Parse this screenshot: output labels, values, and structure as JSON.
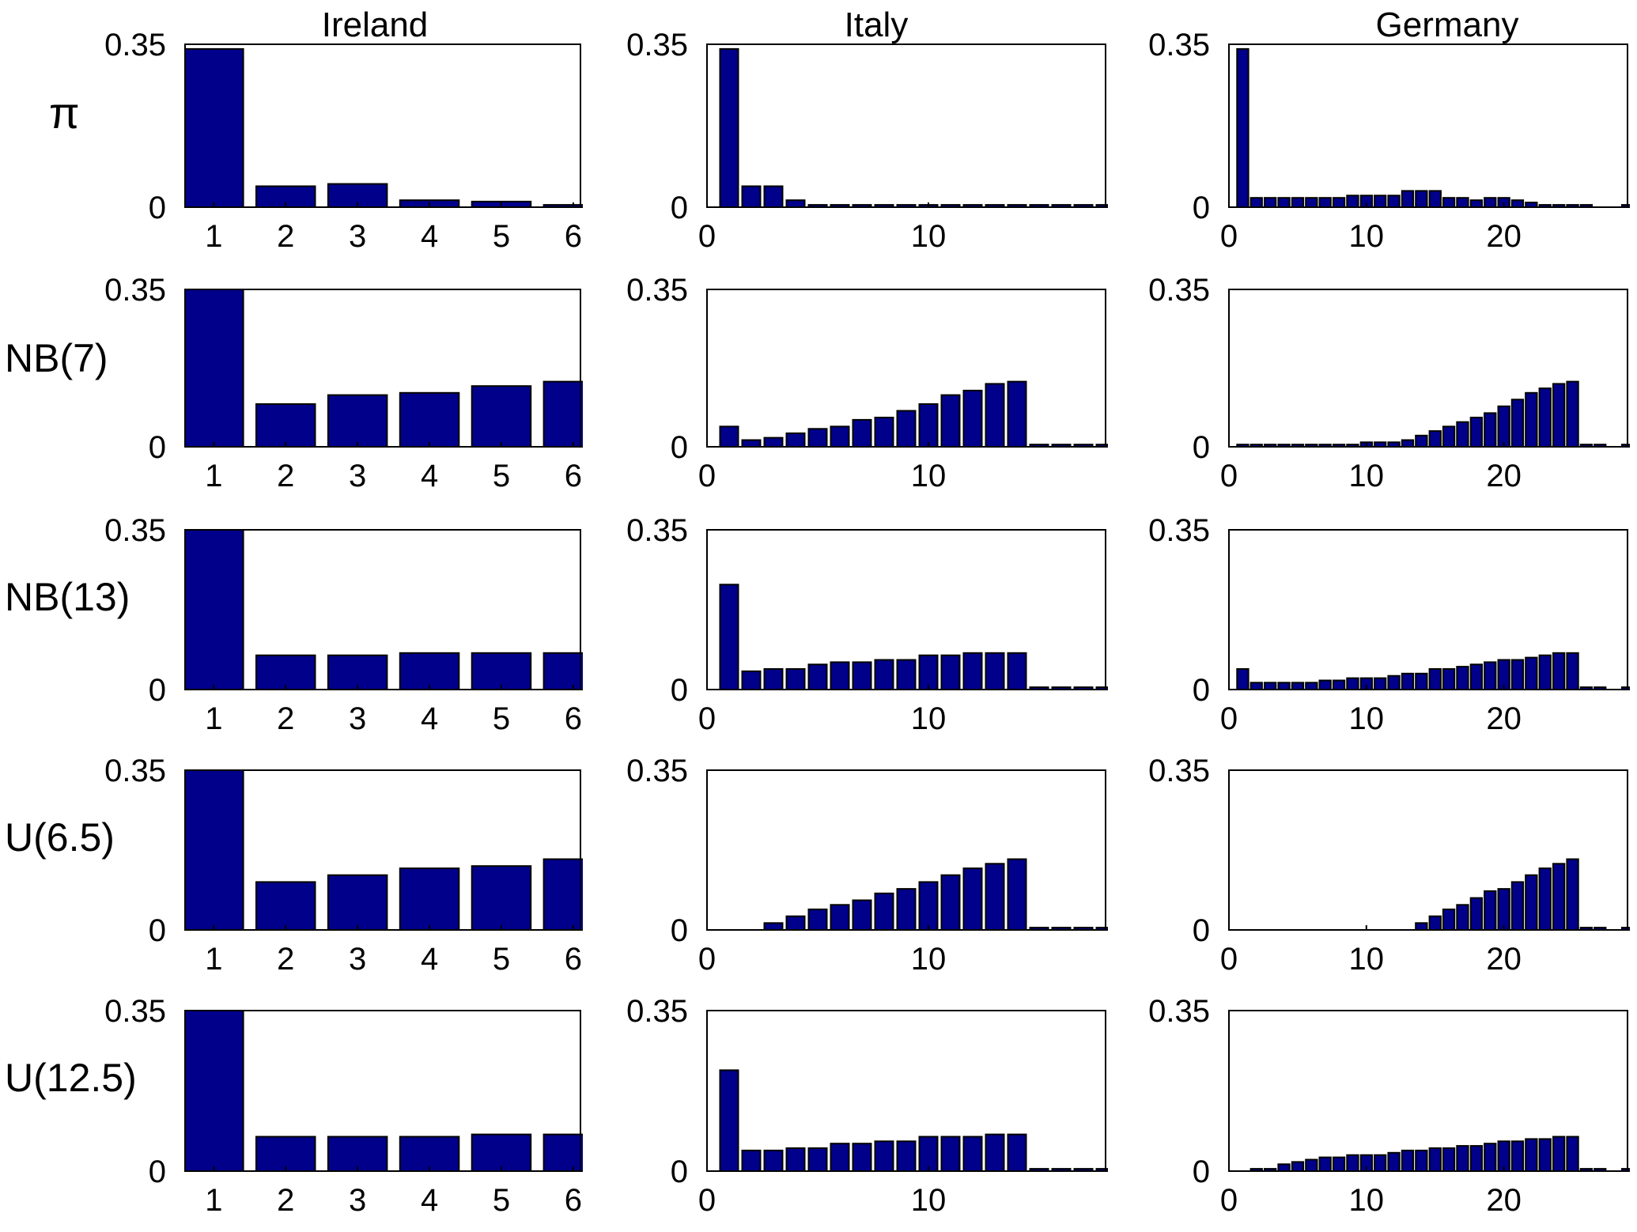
{
  "chart_data": {
    "type": "bar",
    "layout": "grid of bar charts, 5 rows x 3 columns",
    "columns": [
      "Ireland",
      "Italy",
      "Germany"
    ],
    "rows": [
      "π",
      "NB(7)",
      "NB(13)",
      "U(6.5)",
      "U(12.5)"
    ],
    "ylim": [
      0,
      0.35
    ],
    "y_ticks": [
      "0",
      "0.35"
    ],
    "bar_color": "#00008b",
    "bar_edge_color": "#000000",
    "grid": false,
    "axes": {
      "Ireland": {
        "xlim": [
          0.6,
          6.1
        ],
        "x_ticks": [
          1,
          2,
          3,
          4,
          5,
          6
        ],
        "x": [
          1,
          2,
          3,
          4,
          5,
          6
        ]
      },
      "Italy": {
        "xlim": [
          0,
          18
        ],
        "x_ticks": [
          0,
          10
        ],
        "x": [
          1,
          2,
          3,
          4,
          5,
          6,
          7,
          8,
          9,
          10,
          11,
          12,
          13,
          14,
          15,
          16,
          17,
          18
        ]
      },
      "Germany": {
        "xlim": [
          0,
          29
        ],
        "x_ticks": [
          0,
          10,
          20
        ],
        "x": [
          1,
          2,
          3,
          4,
          5,
          6,
          7,
          8,
          9,
          10,
          11,
          12,
          13,
          14,
          15,
          16,
          17,
          18,
          19,
          20,
          21,
          22,
          23,
          24,
          25,
          26,
          27,
          28,
          29
        ]
      }
    },
    "panels": {
      "π": {
        "Ireland": [
          0.34,
          0.045,
          0.05,
          0.015,
          0.012,
          0.005
        ],
        "Italy": [
          0.34,
          0.045,
          0.045,
          0.015,
          0.005,
          0.005,
          0.005,
          0.005,
          0.005,
          0.005,
          0.005,
          0.005,
          0.005,
          0.005,
          0.005,
          0.005,
          0.005,
          0.005
        ],
        "Germany": [
          0.34,
          0.02,
          0.02,
          0.02,
          0.02,
          0.02,
          0.02,
          0.02,
          0.025,
          0.025,
          0.025,
          0.025,
          0.035,
          0.035,
          0.035,
          0.02,
          0.02,
          0.015,
          0.02,
          0.02,
          0.015,
          0.01,
          0.005,
          0.005,
          0.005,
          0.005,
          0.0,
          0.0,
          0.005
        ]
      },
      "NB(7)": {
        "Ireland": [
          0.35,
          0.095,
          0.115,
          0.12,
          0.135,
          0.145
        ],
        "Italy": [
          0.045,
          0.015,
          0.02,
          0.03,
          0.04,
          0.045,
          0.06,
          0.065,
          0.08,
          0.095,
          0.115,
          0.125,
          0.14,
          0.145,
          0.005,
          0.005,
          0.005,
          0.005
        ],
        "Germany": [
          0.005,
          0.005,
          0.005,
          0.005,
          0.005,
          0.005,
          0.005,
          0.005,
          0.005,
          0.01,
          0.01,
          0.01,
          0.015,
          0.025,
          0.035,
          0.045,
          0.055,
          0.065,
          0.075,
          0.09,
          0.105,
          0.12,
          0.13,
          0.14,
          0.145,
          0.005,
          0.005,
          0.0,
          0.005
        ]
      },
      "NB(13)": {
        "Ireland": [
          0.35,
          0.075,
          0.075,
          0.08,
          0.08,
          0.08
        ],
        "Italy": [
          0.23,
          0.04,
          0.045,
          0.045,
          0.055,
          0.06,
          0.06,
          0.065,
          0.065,
          0.075,
          0.075,
          0.08,
          0.08,
          0.08,
          0.005,
          0.005,
          0.005,
          0.005
        ],
        "Germany": [
          0.045,
          0.015,
          0.015,
          0.015,
          0.015,
          0.015,
          0.02,
          0.02,
          0.025,
          0.025,
          0.025,
          0.03,
          0.035,
          0.035,
          0.045,
          0.045,
          0.05,
          0.055,
          0.06,
          0.065,
          0.065,
          0.07,
          0.075,
          0.08,
          0.08,
          0.005,
          0.005,
          0.0,
          0.005
        ]
      },
      "U(6.5)": {
        "Ireland": [
          0.35,
          0.105,
          0.12,
          0.135,
          0.14,
          0.155
        ],
        "Italy": [
          0.0,
          0.0,
          0.015,
          0.03,
          0.045,
          0.055,
          0.065,
          0.08,
          0.09,
          0.105,
          0.12,
          0.135,
          0.145,
          0.155,
          0.005,
          0.005,
          0.005,
          0.005
        ],
        "Germany": [
          0.0,
          0.0,
          0.0,
          0.0,
          0.0,
          0.0,
          0.0,
          0.0,
          0.0,
          0.0,
          0.0,
          0.0,
          0.0,
          0.015,
          0.03,
          0.045,
          0.055,
          0.07,
          0.085,
          0.09,
          0.105,
          0.12,
          0.135,
          0.145,
          0.155,
          0.005,
          0.005,
          0.0,
          0.005
        ]
      },
      "U(12.5)": {
        "Ireland": [
          0.35,
          0.075,
          0.075,
          0.075,
          0.08,
          0.08
        ],
        "Italy": [
          0.22,
          0.045,
          0.045,
          0.05,
          0.05,
          0.06,
          0.06,
          0.065,
          0.065,
          0.075,
          0.075,
          0.075,
          0.08,
          0.08,
          0.005,
          0.005,
          0.005,
          0.005
        ],
        "Germany": [
          0.0,
          0.005,
          0.005,
          0.015,
          0.02,
          0.025,
          0.03,
          0.03,
          0.035,
          0.035,
          0.035,
          0.04,
          0.045,
          0.045,
          0.05,
          0.05,
          0.055,
          0.055,
          0.06,
          0.065,
          0.065,
          0.07,
          0.07,
          0.075,
          0.075,
          0.005,
          0.005,
          0.0,
          0.005
        ]
      }
    }
  }
}
